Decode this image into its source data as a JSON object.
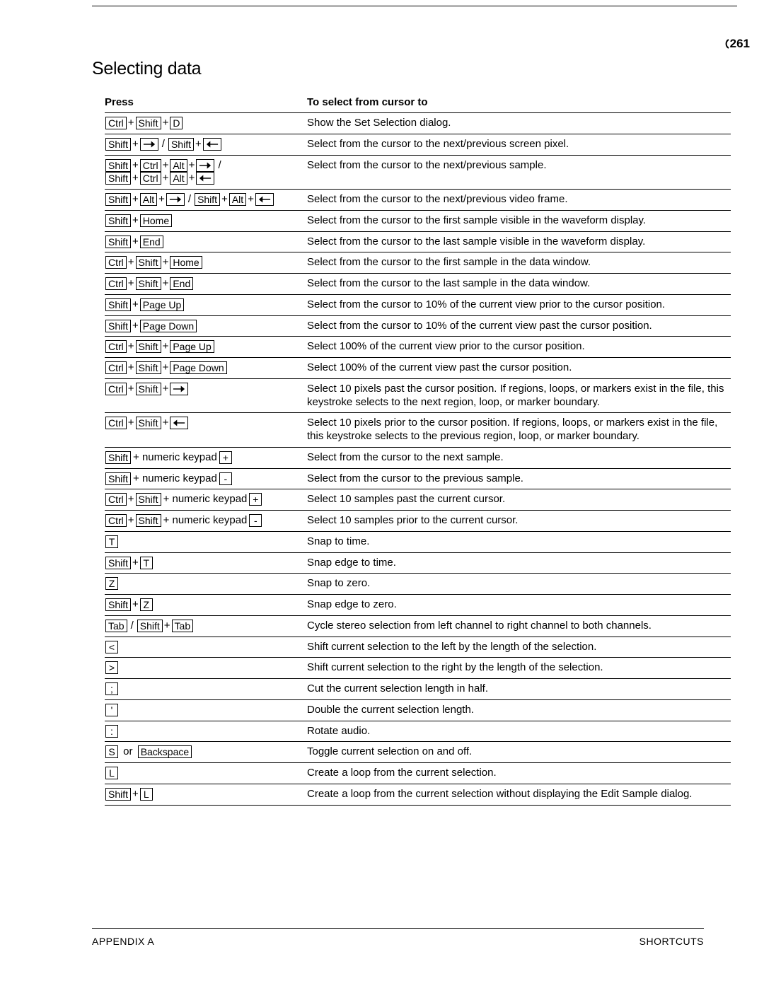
{
  "page_number": "261",
  "title": "Selecting data",
  "table": {
    "head_press": "Press",
    "head_desc": "To select from cursor to",
    "rows": [
      {
        "press": [
          [
            "key",
            "Ctrl"
          ],
          [
            "plus"
          ],
          [
            "key",
            "Shift"
          ],
          [
            "plus"
          ],
          [
            "key",
            "D"
          ]
        ],
        "desc": "Show the Set Selection dialog."
      },
      {
        "press": [
          [
            "key",
            "Shift"
          ],
          [
            "plus"
          ],
          [
            "keyarrow",
            "right"
          ],
          [
            "slash"
          ],
          [
            "key",
            "Shift"
          ],
          [
            "plus"
          ],
          [
            "keyarrow",
            "left"
          ]
        ],
        "desc": "Select from the cursor to the next/previous screen pixel."
      },
      {
        "press": [
          [
            "key",
            "Shift"
          ],
          [
            "plus"
          ],
          [
            "key",
            "Ctrl"
          ],
          [
            "plus"
          ],
          [
            "key",
            "Alt"
          ],
          [
            "plus"
          ],
          [
            "keyarrow",
            "right"
          ],
          [
            "slash"
          ],
          [
            "br"
          ],
          [
            "key",
            "Shift"
          ],
          [
            "plus"
          ],
          [
            "key",
            "Ctrl"
          ],
          [
            "plus"
          ],
          [
            "key",
            "Alt"
          ],
          [
            "plus"
          ],
          [
            "keyarrow",
            "left"
          ]
        ],
        "desc": "Select from the cursor to the next/previous sample."
      },
      {
        "press": [
          [
            "key",
            "Shift"
          ],
          [
            "plus"
          ],
          [
            "key",
            "Alt"
          ],
          [
            "plus"
          ],
          [
            "keyarrow",
            "right"
          ],
          [
            "slash"
          ],
          [
            "key",
            "Shift"
          ],
          [
            "plus"
          ],
          [
            "key",
            "Alt"
          ],
          [
            "plus"
          ],
          [
            "keyarrow",
            "left"
          ]
        ],
        "desc": "Select from the cursor to the next/previous video frame."
      },
      {
        "press": [
          [
            "key",
            "Shift"
          ],
          [
            "plus"
          ],
          [
            "key",
            "Home"
          ]
        ],
        "desc": "Select from the cursor to the first sample visible in the waveform display."
      },
      {
        "press": [
          [
            "key",
            "Shift"
          ],
          [
            "plus"
          ],
          [
            "key",
            "End"
          ]
        ],
        "desc": "Select from the cursor to the last sample visible in the waveform display."
      },
      {
        "press": [
          [
            "key",
            "Ctrl"
          ],
          [
            "plus"
          ],
          [
            "key",
            "Shift"
          ],
          [
            "plus"
          ],
          [
            "key",
            "Home"
          ]
        ],
        "desc": "Select from the cursor to the first sample in the data window."
      },
      {
        "press": [
          [
            "key",
            "Ctrl"
          ],
          [
            "plus"
          ],
          [
            "key",
            "Shift"
          ],
          [
            "plus"
          ],
          [
            "key",
            "End"
          ]
        ],
        "desc": "Select from the cursor to the last sample in the data window."
      },
      {
        "press": [
          [
            "key",
            "Shift"
          ],
          [
            "plus"
          ],
          [
            "key",
            "Page Up"
          ]
        ],
        "desc": "Select from the cursor to 10% of the current view prior to the cursor position."
      },
      {
        "press": [
          [
            "key",
            "Shift"
          ],
          [
            "plus"
          ],
          [
            "key",
            "Page Down"
          ]
        ],
        "desc": "Select from the cursor to 10% of the current view past the cursor position."
      },
      {
        "press": [
          [
            "key",
            "Ctrl"
          ],
          [
            "plus"
          ],
          [
            "key",
            "Shift"
          ],
          [
            "plus"
          ],
          [
            "key",
            "Page Up"
          ]
        ],
        "desc": "Select 100% of the current view prior to the cursor position."
      },
      {
        "press": [
          [
            "key",
            "Ctrl"
          ],
          [
            "plus"
          ],
          [
            "key",
            "Shift"
          ],
          [
            "plus"
          ],
          [
            "key",
            "Page Down"
          ]
        ],
        "desc": "Select 100% of the current view past the cursor position."
      },
      {
        "press": [
          [
            "key",
            "Ctrl"
          ],
          [
            "plus"
          ],
          [
            "key",
            "Shift"
          ],
          [
            "plus"
          ],
          [
            "keyarrow",
            "right"
          ]
        ],
        "desc": "Select 10 pixels past the cursor position. If regions, loops, or markers exist in the file, this keystroke selects to the next region, loop, or marker boundary."
      },
      {
        "press": [
          [
            "key",
            "Ctrl"
          ],
          [
            "plus"
          ],
          [
            "key",
            "Shift"
          ],
          [
            "plus"
          ],
          [
            "keyarrow",
            "left"
          ]
        ],
        "desc": "Select 10 pixels prior to the cursor position. If regions, loops, or markers exist in the file, this keystroke selects to the previous region, loop, or marker boundary."
      },
      {
        "press": [
          [
            "key",
            "Shift"
          ],
          [
            "txt",
            "+ numeric keypad"
          ],
          [
            "key",
            "+"
          ]
        ],
        "desc": "Select from the cursor to the next sample."
      },
      {
        "press": [
          [
            "key",
            "Shift"
          ],
          [
            "txt",
            "+ numeric keypad"
          ],
          [
            "key",
            " - "
          ]
        ],
        "desc": "Select from the cursor to the previous sample."
      },
      {
        "press": [
          [
            "key",
            "Ctrl"
          ],
          [
            "plus"
          ],
          [
            "key",
            "Shift"
          ],
          [
            "txt",
            "+ numeric keypad"
          ],
          [
            "key",
            "+"
          ]
        ],
        "desc": "Select 10 samples past the current cursor."
      },
      {
        "press": [
          [
            "key",
            "Ctrl"
          ],
          [
            "plus"
          ],
          [
            "key",
            "Shift"
          ],
          [
            "txt",
            "+ numeric keypad"
          ],
          [
            "key",
            " - "
          ]
        ],
        "desc": "Select 10 samples prior to the current cursor."
      },
      {
        "press": [
          [
            "key",
            "T"
          ]
        ],
        "desc": "Snap to time."
      },
      {
        "press": [
          [
            "key",
            "Shift"
          ],
          [
            "plus"
          ],
          [
            "key",
            "T"
          ]
        ],
        "desc": "Snap edge to time."
      },
      {
        "press": [
          [
            "key",
            "Z"
          ]
        ],
        "desc": "Snap to zero."
      },
      {
        "press": [
          [
            "key",
            "Shift"
          ],
          [
            "plus"
          ],
          [
            "key",
            "Z"
          ]
        ],
        "desc": "Snap edge to zero."
      },
      {
        "press": [
          [
            "key",
            "Tab"
          ],
          [
            "slash"
          ],
          [
            "key",
            "Shift"
          ],
          [
            "plus"
          ],
          [
            "key",
            "Tab"
          ]
        ],
        "desc": "Cycle stereo selection from left channel to right channel to both channels."
      },
      {
        "press": [
          [
            "key",
            "<"
          ]
        ],
        "desc": "Shift current selection to the left by the length of the selection."
      },
      {
        "press": [
          [
            "key",
            ">"
          ]
        ],
        "desc": "Shift current selection to the right by the length of the selection."
      },
      {
        "press": [
          [
            "key",
            ";"
          ]
        ],
        "desc": "Cut the current selection length in half."
      },
      {
        "press": [
          [
            "key",
            "'"
          ]
        ],
        "desc": "Double the current selection length."
      },
      {
        "press": [
          [
            "key",
            ":"
          ]
        ],
        "desc": "Rotate audio."
      },
      {
        "press": [
          [
            "key",
            "S"
          ],
          [
            "txt",
            " or "
          ],
          [
            "key",
            "Backspace"
          ]
        ],
        "desc": "Toggle current selection on and off."
      },
      {
        "press": [
          [
            "key",
            "L"
          ]
        ],
        "desc": "Create a loop from the current selection."
      },
      {
        "press": [
          [
            "key",
            "Shift"
          ],
          [
            "plus"
          ],
          [
            "key",
            "L"
          ]
        ],
        "desc": "Create a loop from the current selection without displaying the Edit Sample dialog."
      }
    ]
  },
  "footer_left": "APPENDIX A",
  "footer_right": "SHORTCUTS"
}
